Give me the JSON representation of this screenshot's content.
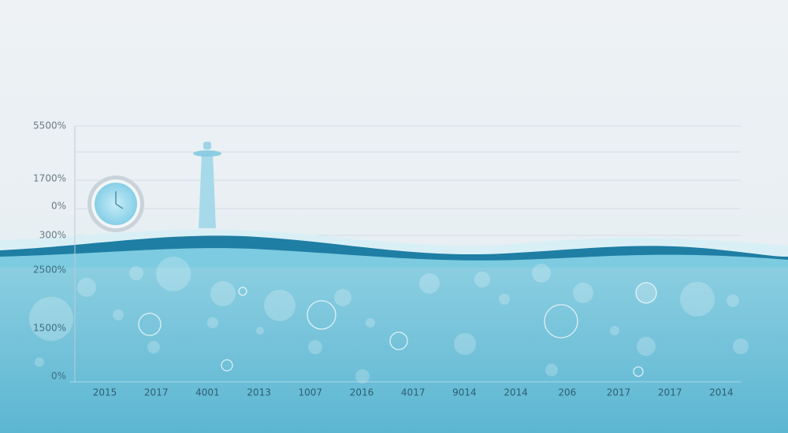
{
  "y_labels": [
    "5500%",
    "1700%",
    "0%",
    "300%",
    "2500%",
    "1500%",
    "0%"
  ],
  "x_labels": [
    "2015",
    "2017",
    "4001",
    "2013",
    "1007",
    "2016",
    "4017",
    "9014",
    "2014",
    "206",
    "2017",
    "2017",
    "2014"
  ]
}
